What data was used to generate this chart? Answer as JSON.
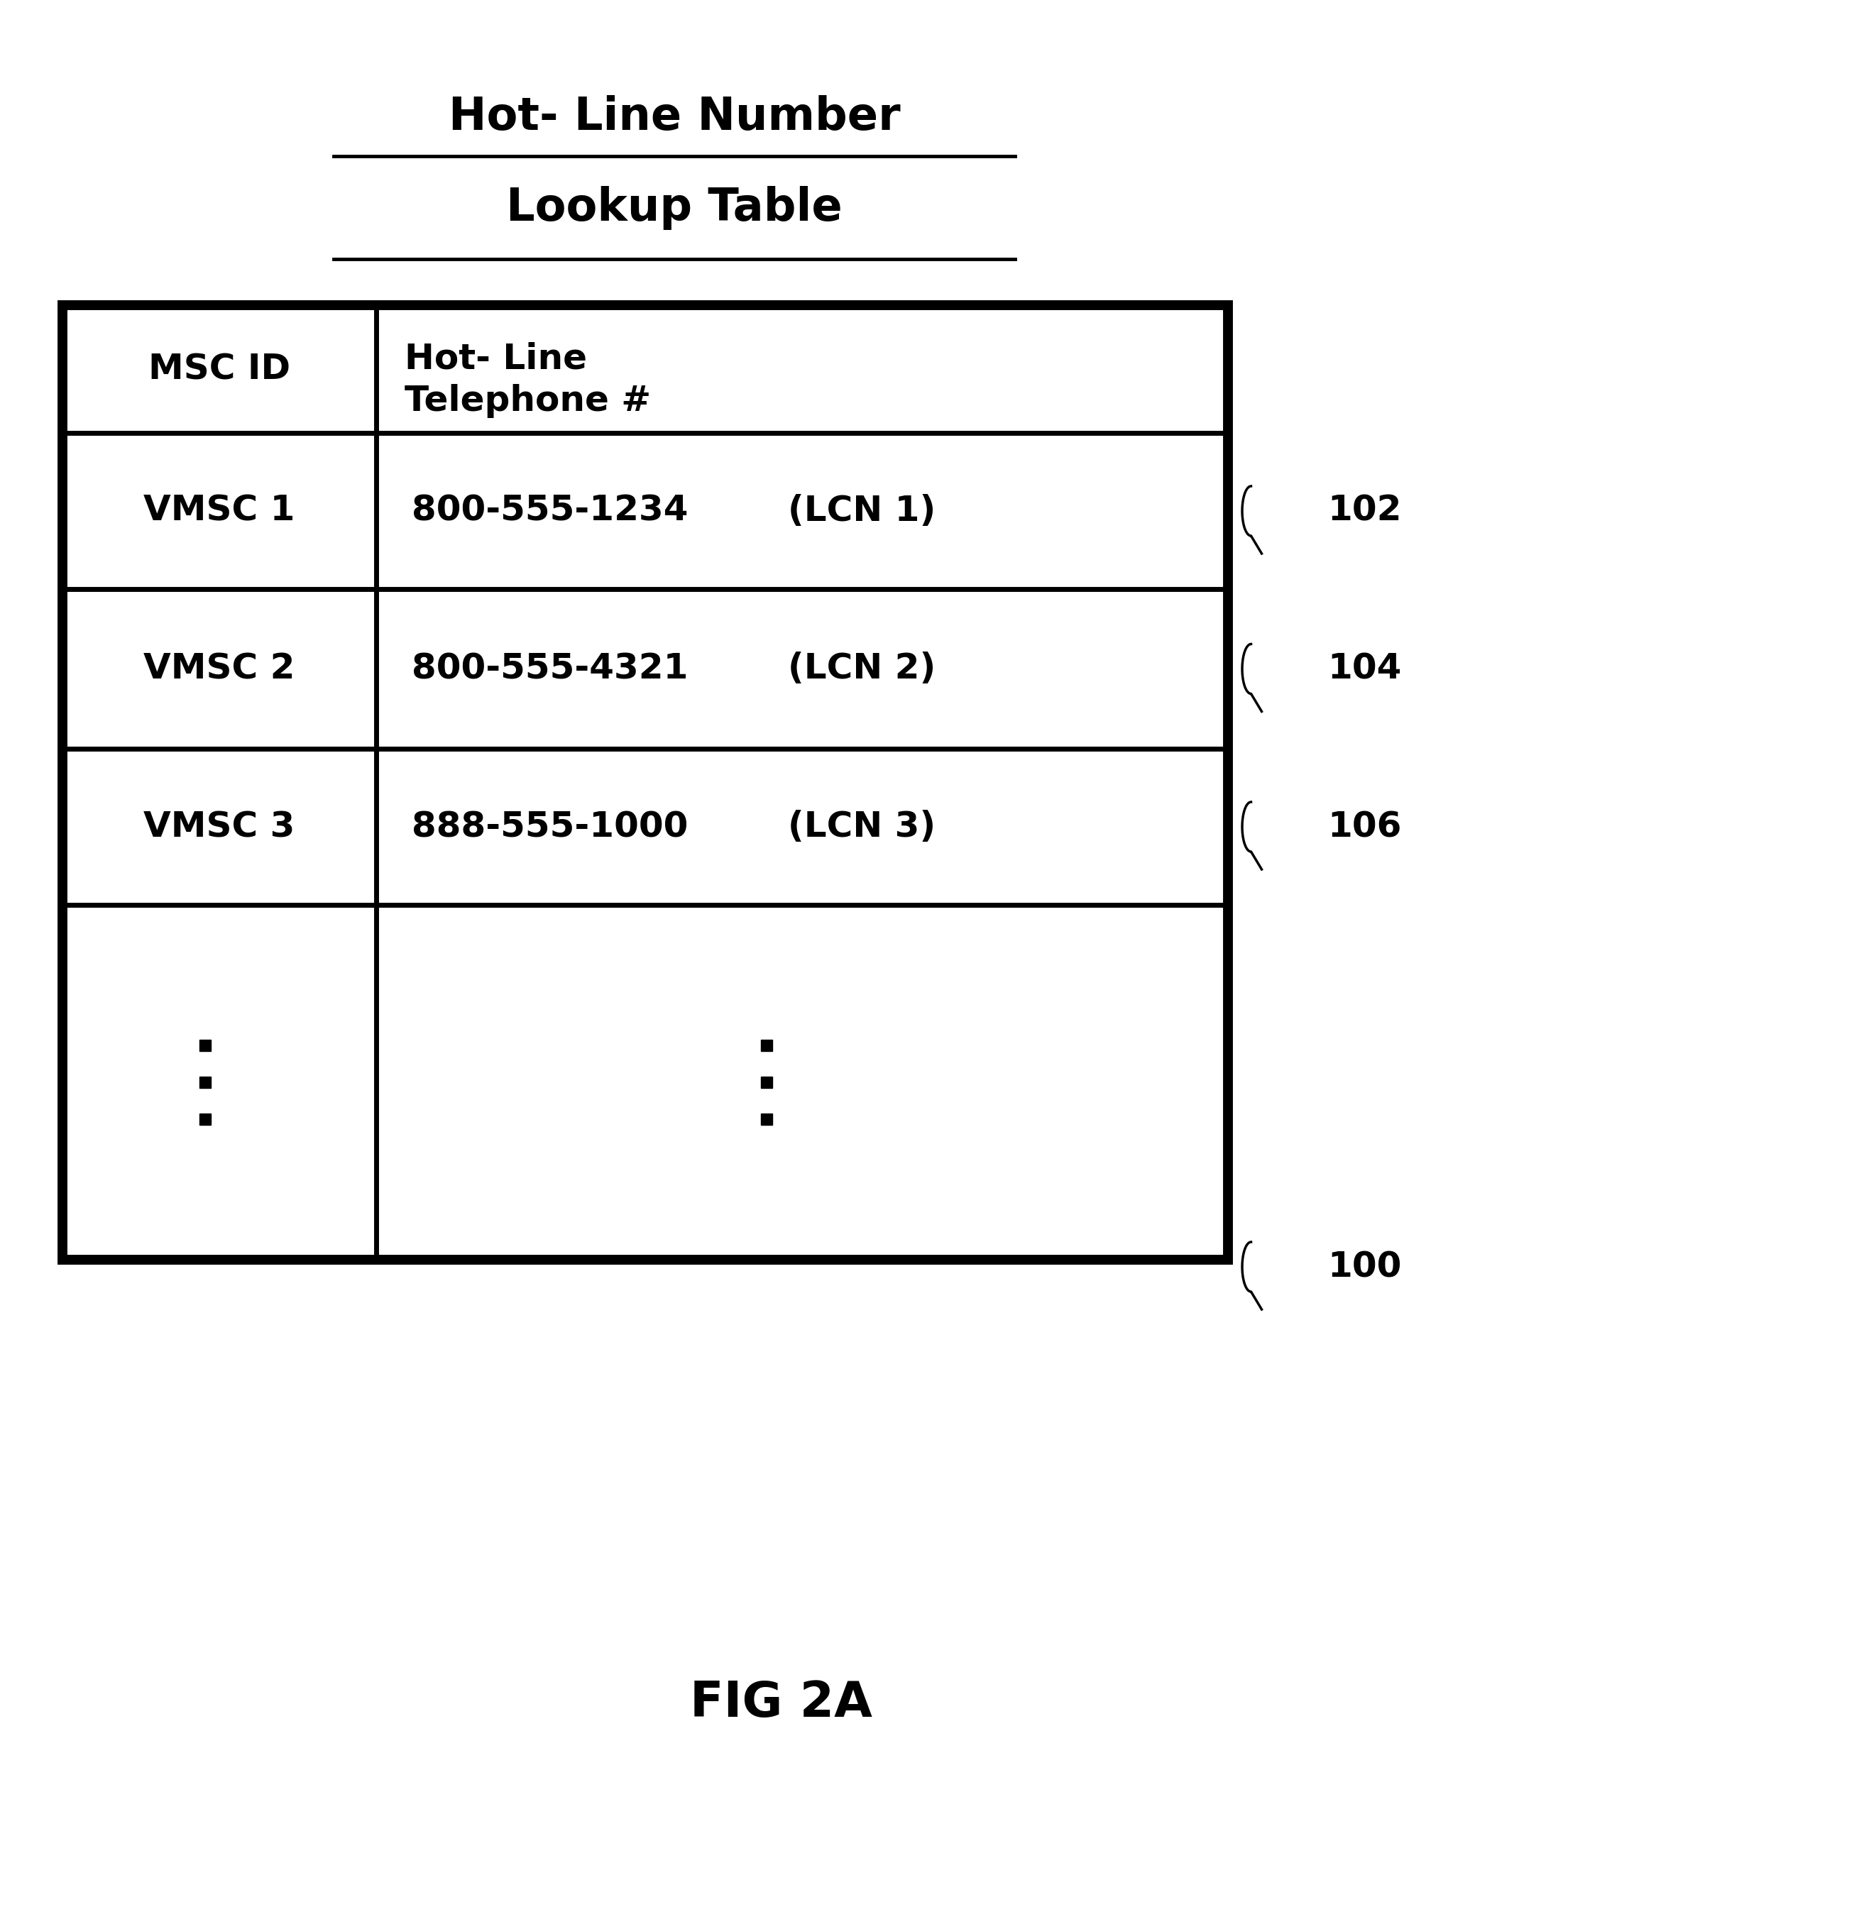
{
  "title_line1": "Hot- Line Number",
  "title_line2": "Lookup Table",
  "col1_header": "MSC ID",
  "col2_header_line1": "Hot- Line",
  "col2_header_line2": "Telephone #",
  "rows": [
    {
      "col1": "VMSC 1",
      "col2_phone": "800-555-1234",
      "col2_lcn": "(LCN 1)",
      "label": "102"
    },
    {
      "col1": "VMSC 2",
      "col2_phone": "800-555-4321",
      "col2_lcn": "(LCN 2)",
      "label": "104"
    },
    {
      "col1": "VMSC 3",
      "col2_phone": "888-555-1000",
      "col2_lcn": "(LCN 3)",
      "label": "106"
    }
  ],
  "table_label": "100",
  "fig_label": "FIG 2A",
  "bg_color": "#ffffff",
  "text_color": "#000000",
  "border_color": "#000000"
}
